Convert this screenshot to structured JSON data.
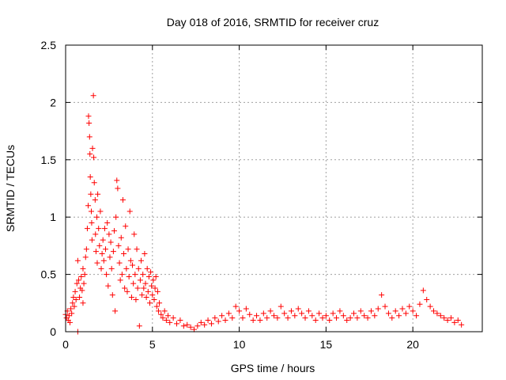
{
  "chart_data": {
    "type": "scatter",
    "title": "Day 018 of 2016, SRMTID for receiver cruz",
    "xlabel": "GPS time / hours",
    "ylabel": "SRMTID / TECUs",
    "xlim": [
      0,
      24
    ],
    "ylim": [
      0,
      2.5
    ],
    "xticks": [
      0,
      5,
      10,
      15,
      20
    ],
    "xtick_labels": [
      "0",
      "5",
      "10",
      "15",
      "20"
    ],
    "yticks": [
      0,
      0.5,
      1,
      1.5,
      2,
      2.5
    ],
    "ytick_labels": [
      "0",
      "0.5",
      "1",
      "1.5",
      "2",
      "2.5"
    ],
    "grid": true,
    "marker": "+",
    "color": "#ff0000",
    "series": [
      {
        "name": "SRMTID",
        "points": [
          [
            0.0,
            0.15
          ],
          [
            0.05,
            0.12
          ],
          [
            0.1,
            0.18
          ],
          [
            0.15,
            0.1
          ],
          [
            0.2,
            0.14
          ],
          [
            0.25,
            0.08
          ],
          [
            0.3,
            0.2
          ],
          [
            0.35,
            0.16
          ],
          [
            0.4,
            0.25
          ],
          [
            0.45,
            0.3
          ],
          [
            0.5,
            0.22
          ],
          [
            0.55,
            0.35
          ],
          [
            0.6,
            0.28
          ],
          [
            0.65,
            0.42
          ],
          [
            0.7,
            0.62
          ],
          [
            0.7,
            0.0
          ],
          [
            0.75,
            0.45
          ],
          [
            0.8,
            0.3
          ],
          [
            0.85,
            0.38
          ],
          [
            0.9,
            0.48
          ],
          [
            0.95,
            0.36
          ],
          [
            1.0,
            0.55
          ],
          [
            1.0,
            0.25
          ],
          [
            1.05,
            0.42
          ],
          [
            1.1,
            0.5
          ],
          [
            1.15,
            0.65
          ],
          [
            1.2,
            0.72
          ],
          [
            1.25,
            0.9
          ],
          [
            1.3,
            1.1
          ],
          [
            1.32,
            1.88
          ],
          [
            1.35,
            1.82
          ],
          [
            1.38,
            1.7
          ],
          [
            1.4,
            1.55
          ],
          [
            1.42,
            1.35
          ],
          [
            1.45,
            1.2
          ],
          [
            1.48,
            1.05
          ],
          [
            1.5,
            0.95
          ],
          [
            1.52,
            0.8
          ],
          [
            1.55,
            1.6
          ],
          [
            1.6,
            2.06
          ],
          [
            1.62,
            1.52
          ],
          [
            1.65,
            1.3
          ],
          [
            1.7,
            1.15
          ],
          [
            1.72,
            0.85
          ],
          [
            1.75,
            0.7
          ],
          [
            1.8,
            1.0
          ],
          [
            1.82,
            0.6
          ],
          [
            1.85,
            1.2
          ],
          [
            1.9,
            0.9
          ],
          [
            1.95,
            0.75
          ],
          [
            2.0,
            1.05
          ],
          [
            2.05,
            0.55
          ],
          [
            2.1,
            0.68
          ],
          [
            2.15,
            0.8
          ],
          [
            2.2,
            0.62
          ],
          [
            2.25,
            0.9
          ],
          [
            2.3,
            0.72
          ],
          [
            2.35,
            0.5
          ],
          [
            2.4,
            0.95
          ],
          [
            2.45,
            0.4
          ],
          [
            2.5,
            0.85
          ],
          [
            2.55,
            0.65
          ],
          [
            2.6,
            0.78
          ],
          [
            2.65,
            0.55
          ],
          [
            2.7,
            0.32
          ],
          [
            2.75,
            0.7
          ],
          [
            2.8,
            0.88
          ],
          [
            2.85,
            0.18
          ],
          [
            2.9,
            1.0
          ],
          [
            2.95,
            1.32
          ],
          [
            3.0,
            1.25
          ],
          [
            3.05,
            0.75
          ],
          [
            3.1,
            0.6
          ],
          [
            3.15,
            0.45
          ],
          [
            3.2,
            0.82
          ],
          [
            3.25,
            0.5
          ],
          [
            3.3,
            1.15
          ],
          [
            3.35,
            0.68
          ],
          [
            3.4,
            0.38
          ],
          [
            3.45,
            0.92
          ],
          [
            3.5,
            0.55
          ],
          [
            3.55,
            0.35
          ],
          [
            3.6,
            0.72
          ],
          [
            3.65,
            0.48
          ],
          [
            3.7,
            1.05
          ],
          [
            3.75,
            0.62
          ],
          [
            3.8,
            0.3
          ],
          [
            3.85,
            0.58
          ],
          [
            3.9,
            0.42
          ],
          [
            3.95,
            0.85
          ],
          [
            4.0,
            0.5
          ],
          [
            4.05,
            0.28
          ],
          [
            4.1,
            0.72
          ],
          [
            4.15,
            0.38
          ],
          [
            4.2,
            0.55
          ],
          [
            4.25,
            0.05
          ],
          [
            4.3,
            0.45
          ],
          [
            4.35,
            0.62
          ],
          [
            4.4,
            0.32
          ],
          [
            4.45,
            0.5
          ],
          [
            4.5,
            0.38
          ],
          [
            4.55,
            0.68
          ],
          [
            4.6,
            0.42
          ],
          [
            4.65,
            0.3
          ],
          [
            4.7,
            0.55
          ],
          [
            4.75,
            0.35
          ],
          [
            4.8,
            0.48
          ],
          [
            4.85,
            0.25
          ],
          [
            4.9,
            0.52
          ],
          [
            4.95,
            0.4
          ],
          [
            5.0,
            0.32
          ],
          [
            5.05,
            0.45
          ],
          [
            5.1,
            0.28
          ],
          [
            5.15,
            0.38
          ],
          [
            5.2,
            0.48
          ],
          [
            5.25,
            0.22
          ],
          [
            5.3,
            0.35
          ],
          [
            5.35,
            0.18
          ],
          [
            5.4,
            0.25
          ],
          [
            5.5,
            0.15
          ],
          [
            5.6,
            0.12
          ],
          [
            5.7,
            0.18
          ],
          [
            5.8,
            0.1
          ],
          [
            5.9,
            0.14
          ],
          [
            6.0,
            0.08
          ],
          [
            6.2,
            0.12
          ],
          [
            6.4,
            0.07
          ],
          [
            6.6,
            0.1
          ],
          [
            6.8,
            0.05
          ],
          [
            7.0,
            0.06
          ],
          [
            7.2,
            0.04
          ],
          [
            7.4,
            0.02
          ],
          [
            7.6,
            0.05
          ],
          [
            7.8,
            0.08
          ],
          [
            8.0,
            0.06
          ],
          [
            8.2,
            0.1
          ],
          [
            8.4,
            0.07
          ],
          [
            8.6,
            0.12
          ],
          [
            8.8,
            0.09
          ],
          [
            9.0,
            0.14
          ],
          [
            9.2,
            0.1
          ],
          [
            9.4,
            0.16
          ],
          [
            9.6,
            0.12
          ],
          [
            9.8,
            0.22
          ],
          [
            10.0,
            0.18
          ],
          [
            10.2,
            0.12
          ],
          [
            10.4,
            0.2
          ],
          [
            10.6,
            0.15
          ],
          [
            10.8,
            0.1
          ],
          [
            11.0,
            0.14
          ],
          [
            11.2,
            0.1
          ],
          [
            11.4,
            0.16
          ],
          [
            11.6,
            0.12
          ],
          [
            11.8,
            0.18
          ],
          [
            12.0,
            0.14
          ],
          [
            12.2,
            0.12
          ],
          [
            12.4,
            0.22
          ],
          [
            12.6,
            0.16
          ],
          [
            12.8,
            0.12
          ],
          [
            13.0,
            0.18
          ],
          [
            13.2,
            0.14
          ],
          [
            13.4,
            0.2
          ],
          [
            13.6,
            0.16
          ],
          [
            13.8,
            0.12
          ],
          [
            14.0,
            0.18
          ],
          [
            14.2,
            0.14
          ],
          [
            14.4,
            0.1
          ],
          [
            14.6,
            0.16
          ],
          [
            14.8,
            0.12
          ],
          [
            15.0,
            0.14
          ],
          [
            15.2,
            0.1
          ],
          [
            15.4,
            0.16
          ],
          [
            15.6,
            0.12
          ],
          [
            15.8,
            0.18
          ],
          [
            16.0,
            0.14
          ],
          [
            16.2,
            0.1
          ],
          [
            16.4,
            0.12
          ],
          [
            16.6,
            0.16
          ],
          [
            16.8,
            0.12
          ],
          [
            17.0,
            0.18
          ],
          [
            17.2,
            0.14
          ],
          [
            17.4,
            0.12
          ],
          [
            17.6,
            0.18
          ],
          [
            17.8,
            0.14
          ],
          [
            18.0,
            0.2
          ],
          [
            18.2,
            0.32
          ],
          [
            18.4,
            0.22
          ],
          [
            18.6,
            0.16
          ],
          [
            18.8,
            0.12
          ],
          [
            19.0,
            0.18
          ],
          [
            19.2,
            0.14
          ],
          [
            19.4,
            0.2
          ],
          [
            19.6,
            0.16
          ],
          [
            19.8,
            0.22
          ],
          [
            20.0,
            0.18
          ],
          [
            20.2,
            0.14
          ],
          [
            20.4,
            0.24
          ],
          [
            20.6,
            0.36
          ],
          [
            20.8,
            0.28
          ],
          [
            21.0,
            0.22
          ],
          [
            21.2,
            0.18
          ],
          [
            21.4,
            0.16
          ],
          [
            21.6,
            0.14
          ],
          [
            21.8,
            0.12
          ],
          [
            22.0,
            0.1
          ],
          [
            22.2,
            0.12
          ],
          [
            22.4,
            0.08
          ],
          [
            22.6,
            0.1
          ],
          [
            22.8,
            0.06
          ]
        ]
      }
    ]
  }
}
